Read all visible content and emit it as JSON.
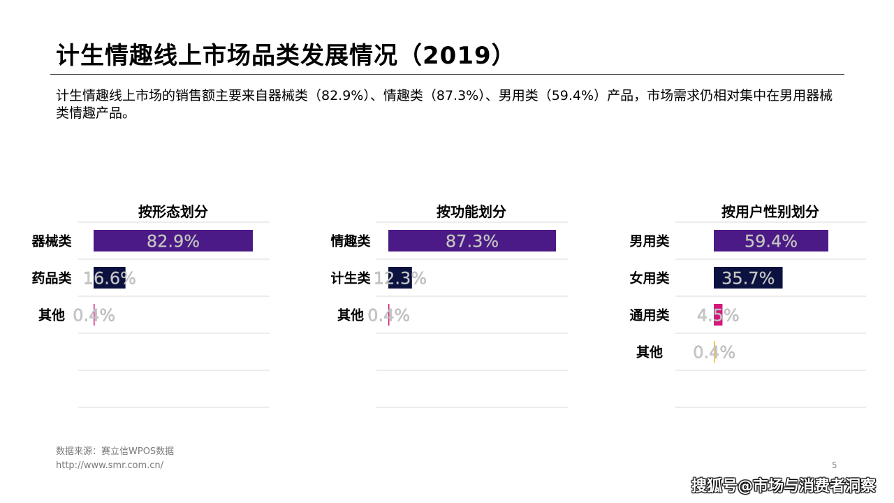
{
  "title": "计生情趣线上市场品类发展情况（2019）",
  "description": "计生情趣线上市场的销售额主要来自器械类（82.9%）、情趣类（87.3%）、男用类（59.4%）产品，市场需求仍相对集中在男用器械类情趣产品。",
  "source": "数据来源：赛立信WPOS数据",
  "source_url": "http://www.smr.com.cn/",
  "page_number": "5",
  "watermark": "搜狐号@市场与消费者洞察",
  "chart_data": [
    {
      "type": "bar",
      "title": "按形态划分",
      "categories": [
        "器械类",
        "药品类",
        "其他"
      ],
      "values": [
        82.9,
        16.6,
        0.4
      ],
      "labels": [
        "82.9%",
        "16.6%",
        "0.4%"
      ],
      "colors": [
        "#4b1a86",
        "#0b1240",
        "#d4177a"
      ],
      "ylim": [
        0,
        100
      ]
    },
    {
      "type": "bar",
      "title": "按功能划分",
      "categories": [
        "情趣类",
        "计生类",
        "其他"
      ],
      "values": [
        87.3,
        12.3,
        0.4
      ],
      "labels": [
        "87.3%",
        "12.3%",
        "0.4%"
      ],
      "colors": [
        "#4b1a86",
        "#0b1240",
        "#d4177a"
      ],
      "ylim": [
        0,
        100
      ]
    },
    {
      "type": "bar",
      "title": "按用户性别划分",
      "categories": [
        "男用类",
        "女用类",
        "通用类",
        "其他"
      ],
      "values": [
        59.4,
        35.7,
        4.5,
        0.4
      ],
      "labels": [
        "59.4%",
        "35.7%",
        "4.5%",
        "0.4%"
      ],
      "colors": [
        "#4b1a86",
        "#0b1240",
        "#d4177a",
        "#f2b51c"
      ],
      "ylim": [
        0,
        100
      ]
    }
  ]
}
